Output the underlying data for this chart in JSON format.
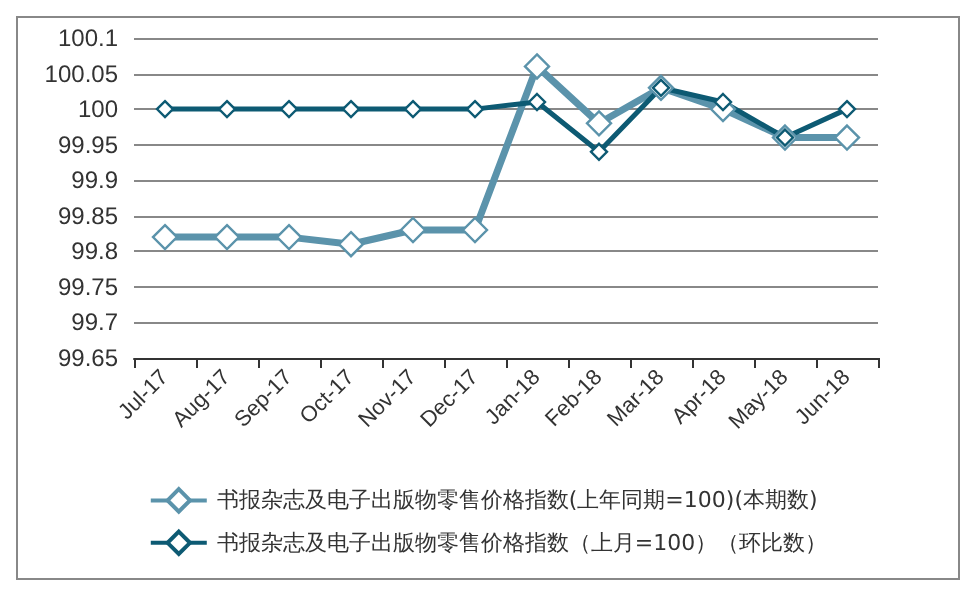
{
  "chart_data": {
    "type": "line",
    "categories": [
      "Jul-17",
      "Aug-17",
      "Sep-17",
      "Oct-17",
      "Nov-17",
      "Dec-17",
      "Jan-18",
      "Feb-18",
      "Mar-18",
      "Apr-18",
      "May-18",
      "Jun-18"
    ],
    "series": [
      {
        "name": "书报杂志及电子出版物零售价格指数(上年同期=100)(本期数)",
        "color": "#5b93ab",
        "values": [
          99.82,
          99.82,
          99.82,
          99.81,
          99.83,
          99.83,
          100.06,
          99.98,
          100.03,
          100.0,
          99.96,
          99.96
        ]
      },
      {
        "name": "书报杂志及电子出版物零售价格指数（上月=100）（环比数）",
        "color": "#0d5a73",
        "values": [
          100,
          100,
          100,
          100,
          100,
          100,
          100.01,
          99.94,
          100.03,
          100.01,
          99.96,
          100
        ]
      }
    ],
    "ylim": [
      99.65,
      100.1
    ],
    "yticks": [
      99.65,
      99.7,
      99.75,
      99.8,
      99.85,
      99.9,
      99.95,
      100,
      100.05,
      100.1
    ],
    "grid": "y",
    "legend": "bottom",
    "marker": "diamond",
    "line_style": "solid"
  }
}
